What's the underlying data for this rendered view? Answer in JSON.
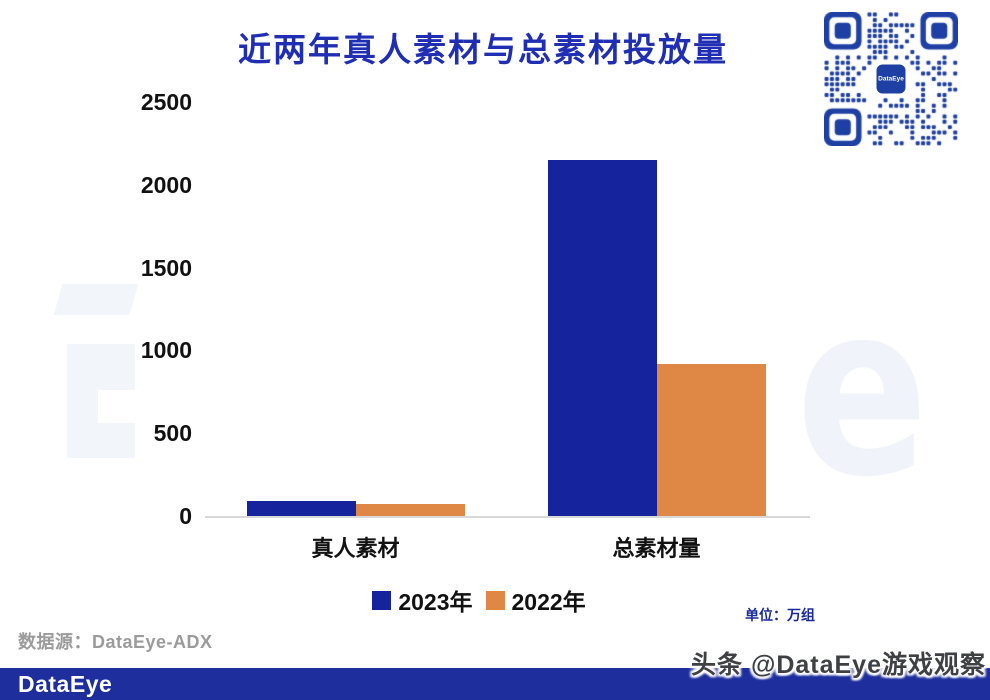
{
  "title": "近两年真人素材与总素材投放量",
  "qr": {
    "center_label": "DataEye"
  },
  "unit_note": "单位：万组",
  "source_note": "数据源：DataEye-ADX",
  "footer": {
    "logo": "DataEye"
  },
  "watermark_text": "头条 @DataEye游戏观察",
  "background_watermark_letter": "e",
  "colors": {
    "title_blue": "#1f2eb3",
    "bar_blue": "#15249c",
    "bar_orange": "#df8745",
    "footer_blue": "#1e2f9d",
    "qr_blue": "#1e3fa3",
    "unit_blue": "#1b2b9b",
    "axis_gray": "#d8d8d8",
    "tick_black": "#111111"
  },
  "chart_data": {
    "type": "bar",
    "categories": [
      "真人素材",
      "总素材量"
    ],
    "series": [
      {
        "name": "2023年",
        "color": "#15249c",
        "values": [
          90,
          2150
        ]
      },
      {
        "name": "2022年",
        "color": "#df8745",
        "values": [
          70,
          920
        ]
      }
    ],
    "title": "近两年真人素材与总素材投放量",
    "xlabel": "",
    "ylabel": "",
    "unit": "万组",
    "ylim": [
      0,
      2500
    ],
    "yticks": [
      0,
      500,
      1000,
      1500,
      2000,
      2500
    ],
    "grid": false,
    "legend_position": "bottom"
  }
}
